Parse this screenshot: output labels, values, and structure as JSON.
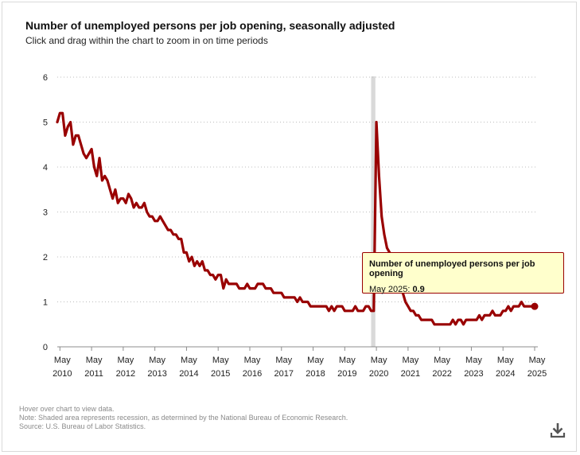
{
  "header": {
    "title": "Number of unemployed persons per job opening, seasonally adjusted",
    "subtitle": "Click and drag within the chart to zoom in on time periods"
  },
  "tooltip": {
    "title": "Number of unemployed persons per job opening",
    "date_label": "May 2025",
    "value": "0.9"
  },
  "notes": {
    "line1": "Hover over chart to view data.",
    "line2": "Note: Shaded area represents recession, as determined by the National Bureau of Economic Research.",
    "line3": "Source: U.S. Bureau of Labor Statistics."
  },
  "icons": {
    "download": "download-icon"
  },
  "colors": {
    "series": "#990000",
    "recession": "#d9d9d9",
    "tooltip_bg": "#ffffcc"
  },
  "chart_data": {
    "type": "line",
    "title": "Number of unemployed persons per job opening, seasonally adjusted",
    "ylim": [
      0,
      6
    ],
    "yticks": [
      "0",
      "1",
      "2",
      "3",
      "4",
      "5",
      "6"
    ],
    "xticks": [
      {
        "month": "May",
        "year": "2010"
      },
      {
        "month": "May",
        "year": "2011"
      },
      {
        "month": "May",
        "year": "2012"
      },
      {
        "month": "May",
        "year": "2013"
      },
      {
        "month": "May",
        "year": "2014"
      },
      {
        "month": "May",
        "year": "2015"
      },
      {
        "month": "May",
        "year": "2016"
      },
      {
        "month": "May",
        "year": "2017"
      },
      {
        "month": "May",
        "year": "2018"
      },
      {
        "month": "May",
        "year": "2019"
      },
      {
        "month": "May",
        "year": "2020"
      },
      {
        "month": "May",
        "year": "2021"
      },
      {
        "month": "May",
        "year": "2022"
      },
      {
        "month": "May",
        "year": "2023"
      },
      {
        "month": "May",
        "year": "2024"
      },
      {
        "month": "May",
        "year": "2025"
      }
    ],
    "xlim": [
      "2010-04",
      "2025-05"
    ],
    "grid": "horizontal-dotted",
    "recession": {
      "start": "2020-03",
      "end": "2020-04"
    },
    "highlight_point": {
      "x": "2025-05",
      "y": 0.9
    },
    "series": [
      {
        "color": "#990000",
        "x": [
          "2010-04",
          "2010-05",
          "2010-06",
          "2010-07",
          "2010-08",
          "2010-09",
          "2010-10",
          "2010-11",
          "2010-12",
          "2011-01",
          "2011-02",
          "2011-03",
          "2011-04",
          "2011-05",
          "2011-06",
          "2011-07",
          "2011-08",
          "2011-09",
          "2011-10",
          "2011-11",
          "2011-12",
          "2012-01",
          "2012-02",
          "2012-03",
          "2012-04",
          "2012-05",
          "2012-06",
          "2012-07",
          "2012-08",
          "2012-09",
          "2012-10",
          "2012-11",
          "2012-12",
          "2013-01",
          "2013-02",
          "2013-03",
          "2013-04",
          "2013-05",
          "2013-06",
          "2013-07",
          "2013-08",
          "2013-09",
          "2013-10",
          "2013-11",
          "2013-12",
          "2014-01",
          "2014-02",
          "2014-03",
          "2014-04",
          "2014-05",
          "2014-06",
          "2014-07",
          "2014-08",
          "2014-09",
          "2014-10",
          "2014-11",
          "2014-12",
          "2015-01",
          "2015-02",
          "2015-03",
          "2015-04",
          "2015-05",
          "2015-06",
          "2015-07",
          "2015-08",
          "2015-09",
          "2015-10",
          "2015-11",
          "2015-12",
          "2016-01",
          "2016-02",
          "2016-03",
          "2016-04",
          "2016-05",
          "2016-06",
          "2016-07",
          "2016-08",
          "2016-09",
          "2016-10",
          "2016-11",
          "2016-12",
          "2017-01",
          "2017-02",
          "2017-03",
          "2017-04",
          "2017-05",
          "2017-06",
          "2017-07",
          "2017-08",
          "2017-09",
          "2017-10",
          "2017-11",
          "2017-12",
          "2018-01",
          "2018-02",
          "2018-03",
          "2018-04",
          "2018-05",
          "2018-06",
          "2018-07",
          "2018-08",
          "2018-09",
          "2018-10",
          "2018-11",
          "2018-12",
          "2019-01",
          "2019-02",
          "2019-03",
          "2019-04",
          "2019-05",
          "2019-06",
          "2019-07",
          "2019-08",
          "2019-09",
          "2019-10",
          "2019-11",
          "2019-12",
          "2020-01",
          "2020-02",
          "2020-03",
          "2020-04",
          "2020-05",
          "2020-06",
          "2020-07",
          "2020-08",
          "2020-09",
          "2020-10",
          "2020-11",
          "2020-12",
          "2021-01",
          "2021-02",
          "2021-03",
          "2021-04",
          "2021-05",
          "2021-06",
          "2021-07",
          "2021-08",
          "2021-09",
          "2021-10",
          "2021-11",
          "2021-12",
          "2022-01",
          "2022-02",
          "2022-03",
          "2022-04",
          "2022-05",
          "2022-06",
          "2022-07",
          "2022-08",
          "2022-09",
          "2022-10",
          "2022-11",
          "2022-12",
          "2023-01",
          "2023-02",
          "2023-03",
          "2023-04",
          "2023-05",
          "2023-06",
          "2023-07",
          "2023-08",
          "2023-09",
          "2023-10",
          "2023-11",
          "2023-12",
          "2024-01",
          "2024-02",
          "2024-03",
          "2024-04",
          "2024-05",
          "2024-06",
          "2024-07",
          "2024-08",
          "2024-09",
          "2024-10",
          "2024-11",
          "2024-12",
          "2025-01",
          "2025-02",
          "2025-03",
          "2025-04",
          "2025-05"
        ],
        "y": [
          5.0,
          5.2,
          5.2,
          4.7,
          4.9,
          5.0,
          4.5,
          4.7,
          4.7,
          4.5,
          4.3,
          4.2,
          4.3,
          4.4,
          4.0,
          3.8,
          4.2,
          3.7,
          3.8,
          3.7,
          3.5,
          3.3,
          3.5,
          3.2,
          3.3,
          3.3,
          3.2,
          3.4,
          3.3,
          3.1,
          3.2,
          3.1,
          3.1,
          3.2,
          3.0,
          2.9,
          2.9,
          2.8,
          2.8,
          2.9,
          2.8,
          2.7,
          2.6,
          2.6,
          2.5,
          2.5,
          2.4,
          2.4,
          2.1,
          2.1,
          1.9,
          2.0,
          1.8,
          1.9,
          1.8,
          1.9,
          1.7,
          1.7,
          1.6,
          1.6,
          1.5,
          1.6,
          1.6,
          1.3,
          1.5,
          1.4,
          1.4,
          1.4,
          1.4,
          1.3,
          1.3,
          1.3,
          1.4,
          1.3,
          1.3,
          1.3,
          1.4,
          1.4,
          1.4,
          1.3,
          1.3,
          1.3,
          1.2,
          1.2,
          1.2,
          1.2,
          1.1,
          1.1,
          1.1,
          1.1,
          1.1,
          1.0,
          1.1,
          1.0,
          1.0,
          1.0,
          0.9,
          0.9,
          0.9,
          0.9,
          0.9,
          0.9,
          0.9,
          0.8,
          0.9,
          0.8,
          0.9,
          0.9,
          0.9,
          0.8,
          0.8,
          0.8,
          0.8,
          0.9,
          0.8,
          0.8,
          0.8,
          0.9,
          0.9,
          0.8,
          0.8,
          5.0,
          3.8,
          2.9,
          2.5,
          2.2,
          2.1,
          2.0,
          1.9,
          1.7,
          1.5,
          1.2,
          1.0,
          0.9,
          0.8,
          0.8,
          0.7,
          0.7,
          0.6,
          0.6,
          0.6,
          0.6,
          0.6,
          0.5,
          0.5,
          0.5,
          0.5,
          0.5,
          0.5,
          0.5,
          0.6,
          0.5,
          0.6,
          0.6,
          0.5,
          0.6,
          0.6,
          0.6,
          0.6,
          0.6,
          0.7,
          0.6,
          0.7,
          0.7,
          0.7,
          0.8,
          0.7,
          0.7,
          0.7,
          0.8,
          0.8,
          0.9,
          0.8,
          0.9,
          0.9,
          0.9,
          1.0,
          0.9,
          0.9,
          0.9,
          0.9,
          0.9
        ]
      }
    ]
  }
}
